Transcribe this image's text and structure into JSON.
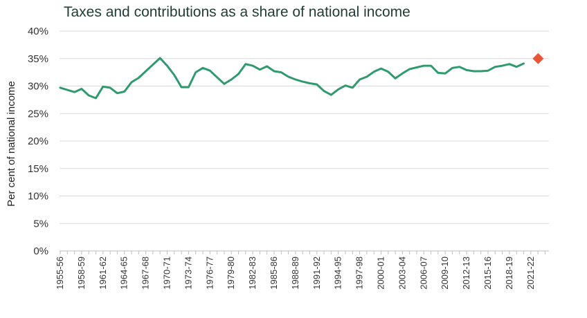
{
  "chart_data": {
    "type": "line",
    "title": "Taxes and contributions as a share of national income",
    "xlabel": "",
    "ylabel": "Per cent of national income",
    "ylim": [
      0,
      40
    ],
    "y_ticks": [
      "0%",
      "5%",
      "10%",
      "15%",
      "20%",
      "25%",
      "30%",
      "35%",
      "40%"
    ],
    "x_tick_labels": [
      "1955-56",
      "1958-59",
      "1961-62",
      "1964-65",
      "1967-68",
      "1970-71",
      "1973-74",
      "1976-77",
      "1979-80",
      "1982-83",
      "1985-86",
      "1988-89",
      "1991-92",
      "1994-95",
      "1997-98",
      "2000-01",
      "2003-04",
      "2006-07",
      "2009-10",
      "2012-13",
      "2015-16",
      "2018-19",
      "2021-22"
    ],
    "grid": true,
    "colors": {
      "line": "#2e9a6e",
      "marker": "#e8563a",
      "grid": "#d9d9d9",
      "title": "#1e3d33"
    },
    "series": [
      {
        "name": "",
        "x": [
          "1955-56",
          "1956-57",
          "1957-58",
          "1958-59",
          "1959-60",
          "1960-61",
          "1961-62",
          "1962-63",
          "1963-64",
          "1964-65",
          "1965-66",
          "1966-67",
          "1967-68",
          "1968-69",
          "1969-70",
          "1970-71",
          "1971-72",
          "1972-73",
          "1973-74",
          "1974-75",
          "1975-76",
          "1976-77",
          "1977-78",
          "1978-79",
          "1979-80",
          "1980-81",
          "1981-82",
          "1982-83",
          "1983-84",
          "1984-85",
          "1985-86",
          "1986-87",
          "1987-88",
          "1988-89",
          "1989-90",
          "1990-91",
          "1991-92",
          "1992-93",
          "1993-94",
          "1994-95",
          "1995-96",
          "1996-97",
          "1997-98",
          "1998-99",
          "1999-00",
          "2000-01",
          "2001-02",
          "2002-03",
          "2003-04",
          "2004-05",
          "2005-06",
          "2006-07",
          "2007-08",
          "2008-09",
          "2009-10",
          "2010-11",
          "2011-12",
          "2012-13",
          "2013-14",
          "2014-15",
          "2015-16",
          "2016-17",
          "2017-18",
          "2018-19",
          "2019-20",
          "2020-21"
        ],
        "values": [
          29.7,
          29.3,
          28.9,
          29.5,
          28.3,
          27.8,
          29.9,
          29.7,
          28.7,
          29.0,
          30.7,
          31.5,
          32.7,
          33.9,
          35.1,
          33.7,
          32.0,
          29.8,
          29.8,
          32.5,
          33.3,
          32.8,
          31.6,
          30.4,
          31.2,
          32.2,
          34.0,
          33.7,
          33.0,
          33.6,
          32.7,
          32.5,
          31.7,
          31.2,
          30.8,
          30.5,
          30.3,
          29.1,
          28.4,
          29.4,
          30.1,
          29.7,
          31.2,
          31.7,
          32.6,
          33.2,
          32.6,
          31.4,
          32.3,
          33.1,
          33.4,
          33.7,
          33.7,
          32.4,
          32.3,
          33.3,
          33.5,
          32.9,
          32.7,
          32.7,
          32.8,
          33.5,
          33.7,
          34.0,
          33.5,
          34.1
        ]
      },
      {
        "name": "",
        "type": "marker",
        "x": [
          "2023-24"
        ],
        "values": [
          35.0
        ]
      }
    ]
  }
}
